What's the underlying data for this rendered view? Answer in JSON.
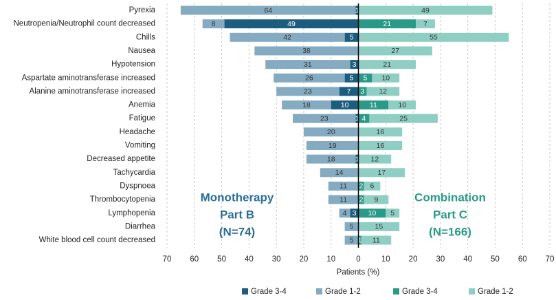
{
  "chart_data": {
    "type": "butterfly-bar",
    "categories": [
      "Pyrexia",
      "Neutropenia/Neutrophil count decreased",
      "Chills",
      "Nausea",
      "Hypotension",
      "Aspartate aminotransferase increased",
      "Alanine aminotransferase increased",
      "Anemia",
      "Fatigue",
      "Headache",
      "Vomiting",
      "Decreased appetite",
      "Tachycardia",
      "Dyspnoea",
      "Thrombocytopenia",
      "Lymphopenia",
      "Diarrhea",
      "White blood cell count decreased"
    ],
    "series": [
      {
        "name": "Grade 3-4",
        "side": "left",
        "color": "#1b5d7e",
        "values": [
          1,
          49,
          5,
          null,
          3,
          5,
          7,
          10,
          1,
          null,
          null,
          1,
          null,
          null,
          null,
          3,
          null,
          null
        ]
      },
      {
        "name": "Grade 1-2",
        "side": "left",
        "color": "#84abc1",
        "values": [
          64,
          8,
          42,
          38,
          31,
          26,
          23,
          18,
          23,
          20,
          19,
          18,
          14,
          11,
          11,
          4,
          5,
          5
        ]
      },
      {
        "name": "Grade 3-4",
        "side": "right",
        "color": "#2a9a88",
        "values": [
          null,
          21,
          null,
          null,
          null,
          5,
          3,
          11,
          4,
          null,
          null,
          null,
          null,
          2,
          2,
          10,
          null,
          1
        ]
      },
      {
        "name": "Grade 1-2",
        "side": "right",
        "color": "#8fcfc3",
        "values": [
          49,
          7,
          55,
          27,
          21,
          10,
          12,
          10,
          25,
          16,
          16,
          12,
          17,
          6,
          9,
          5,
          15,
          11
        ]
      }
    ],
    "xlabel": "Patients (%)",
    "xlim": [
      -70,
      70
    ],
    "xticks": [
      {
        "value": -70,
        "label": "70"
      },
      {
        "value": -60,
        "label": "60"
      },
      {
        "value": -50,
        "label": "50"
      },
      {
        "value": -40,
        "label": "40"
      },
      {
        "value": -30,
        "label": "30"
      },
      {
        "value": -20,
        "label": "20"
      },
      {
        "value": -10,
        "label": "10"
      },
      0,
      10,
      20,
      30,
      40,
      50,
      60,
      70
    ],
    "grid": true,
    "annotations": [
      [
        "Monotherapy",
        "Part B",
        "(N=74)"
      ],
      [
        "Combination",
        "Part C",
        "(N=166)"
      ]
    ],
    "annotation_colors": [
      "#2a6f97",
      "#2a9a88"
    ]
  }
}
